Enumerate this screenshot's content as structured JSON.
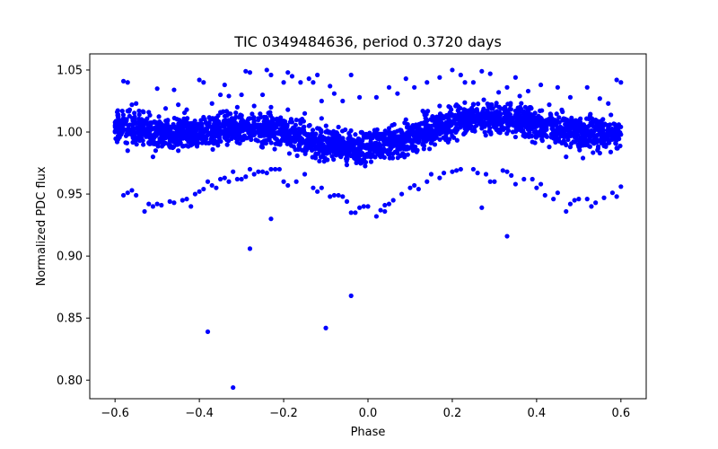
{
  "chart_data": {
    "type": "scatter",
    "title": "TIC 0349484636, period 0.3720 days",
    "xlabel": "Phase",
    "ylabel": "Normalized PDC flux",
    "xlim": [
      -0.66,
      0.66
    ],
    "ylim": [
      0.785,
      1.063
    ],
    "xticks": [
      -0.6,
      -0.4,
      -0.2,
      0.0,
      0.2,
      0.4,
      0.6
    ],
    "xtick_labels": [
      "−0.6",
      "−0.4",
      "−0.2",
      "0.0",
      "0.2",
      "0.4",
      "0.6"
    ],
    "yticks": [
      0.8,
      0.85,
      0.9,
      0.95,
      1.0,
      1.05
    ],
    "ytick_labels": [
      "0.80",
      "0.85",
      "0.90",
      "0.95",
      "1.00",
      "1.05"
    ],
    "grid": false,
    "marker_color": "#0000ff",
    "series": [
      {
        "points": [
          [
            -0.6,
            1.0
          ],
          [
            -0.58,
            1.002
          ],
          [
            -0.56,
            0.998
          ],
          [
            -0.54,
            0.994
          ],
          [
            -0.52,
            0.991
          ],
          [
            -0.5,
            0.99
          ],
          [
            -0.48,
            0.991
          ],
          [
            -0.46,
            0.994
          ],
          [
            -0.44,
            0.997
          ],
          [
            -0.42,
            1.0
          ],
          [
            -0.4,
            1.003
          ],
          [
            -0.38,
            1.005
          ],
          [
            -0.36,
            1.007
          ],
          [
            -0.34,
            1.009
          ],
          [
            -0.32,
            1.01
          ],
          [
            -0.3,
            1.011
          ],
          [
            -0.28,
            1.011
          ],
          [
            -0.26,
            1.011
          ],
          [
            -0.24,
            1.011
          ],
          [
            -0.22,
            1.01
          ],
          [
            -0.2,
            1.009
          ],
          [
            -0.18,
            1.008
          ],
          [
            -0.16,
            1.007
          ],
          [
            -0.14,
            1.005
          ],
          [
            -0.12,
            1.003
          ],
          [
            -0.1,
            1.0
          ],
          [
            -0.08,
            0.996
          ],
          [
            -0.06,
            0.993
          ],
          [
            -0.04,
            0.99
          ],
          [
            -0.02,
            0.988
          ],
          [
            0.0,
            0.987
          ],
          [
            0.02,
            0.988
          ],
          [
            0.04,
            0.991
          ],
          [
            0.06,
            0.995
          ],
          [
            0.08,
            0.999
          ],
          [
            0.1,
            1.003
          ],
          [
            0.12,
            1.006
          ],
          [
            0.14,
            1.009
          ],
          [
            0.16,
            1.011
          ],
          [
            0.18,
            1.012
          ],
          [
            0.2,
            1.013
          ],
          [
            0.22,
            1.013
          ],
          [
            0.24,
            1.013
          ],
          [
            0.26,
            1.012
          ],
          [
            0.28,
            1.011
          ],
          [
            0.3,
            1.01
          ],
          [
            0.32,
            1.008
          ],
          [
            0.34,
            1.006
          ],
          [
            0.36,
            1.004
          ],
          [
            0.38,
            1.002
          ],
          [
            0.4,
            1.0
          ],
          [
            0.42,
            0.998
          ],
          [
            0.44,
            0.995
          ],
          [
            0.46,
            0.991
          ],
          [
            0.48,
            0.988
          ],
          [
            0.5,
            0.988
          ],
          [
            0.52,
            0.99
          ],
          [
            0.54,
            0.992
          ],
          [
            0.56,
            0.994
          ],
          [
            0.58,
            0.996
          ],
          [
            0.6,
            0.998
          ],
          [
            -0.59,
            1.008
          ],
          [
            -0.57,
            0.985
          ],
          [
            -0.53,
            1.002
          ],
          [
            -0.51,
            0.98
          ],
          [
            -0.47,
            0.999
          ],
          [
            -0.45,
            0.985
          ],
          [
            -0.43,
            1.008
          ],
          [
            -0.41,
            0.991
          ],
          [
            -0.39,
            1.012
          ],
          [
            -0.37,
            0.996
          ],
          [
            -0.35,
            1.016
          ],
          [
            -0.33,
            1.0
          ],
          [
            -0.31,
            1.02
          ],
          [
            -0.29,
            1.002
          ],
          [
            -0.27,
            1.021
          ],
          [
            -0.25,
            1.0
          ],
          [
            -0.23,
            1.02
          ],
          [
            -0.21,
            1.0
          ],
          [
            -0.19,
            1.018
          ],
          [
            -0.17,
            0.998
          ],
          [
            -0.15,
            1.015
          ],
          [
            -0.13,
            0.995
          ],
          [
            -0.11,
            1.011
          ],
          [
            -0.09,
            0.99
          ],
          [
            -0.07,
            1.004
          ],
          [
            -0.05,
            0.983
          ],
          [
            -0.03,
            0.998
          ],
          [
            -0.01,
            0.978
          ],
          [
            0.01,
            0.997
          ],
          [
            0.03,
            0.98
          ],
          [
            0.05,
            1.003
          ],
          [
            0.07,
            0.986
          ],
          [
            0.09,
            1.01
          ],
          [
            0.11,
            0.994
          ],
          [
            0.13,
            1.017
          ],
          [
            0.15,
            1.0
          ],
          [
            0.17,
            1.021
          ],
          [
            0.19,
            1.003
          ],
          [
            0.21,
            1.022
          ],
          [
            0.23,
            1.003
          ],
          [
            0.25,
            1.022
          ],
          [
            0.27,
            1.003
          ],
          [
            0.29,
            1.02
          ],
          [
            0.31,
            1.0
          ],
          [
            0.33,
            1.017
          ],
          [
            0.35,
            0.996
          ],
          [
            0.37,
            1.013
          ],
          [
            0.39,
            0.992
          ],
          [
            0.41,
            1.009
          ],
          [
            0.43,
            0.988
          ],
          [
            0.45,
            1.003
          ],
          [
            0.47,
            0.98
          ],
          [
            0.49,
            0.996
          ],
          [
            0.51,
            0.979
          ],
          [
            0.53,
            0.999
          ],
          [
            0.55,
            0.983
          ],
          [
            0.57,
            1.003
          ],
          [
            0.59,
            0.987
          ],
          [
            0.595,
            1.006
          ],
          [
            -0.595,
            0.992
          ],
          [
            -0.58,
            1.041
          ],
          [
            -0.57,
            1.04
          ],
          [
            -0.56,
            1.022
          ],
          [
            -0.55,
            1.023
          ],
          [
            -0.52,
            1.016
          ],
          [
            -0.5,
            1.035
          ],
          [
            -0.48,
            1.019
          ],
          [
            -0.46,
            1.034
          ],
          [
            -0.45,
            1.022
          ],
          [
            -0.43,
            1.018
          ],
          [
            -0.4,
            1.042
          ],
          [
            -0.39,
            1.04
          ],
          [
            -0.37,
            1.023
          ],
          [
            -0.35,
            1.03
          ],
          [
            -0.34,
            1.038
          ],
          [
            -0.33,
            1.029
          ],
          [
            -0.3,
            1.03
          ],
          [
            -0.29,
            1.049
          ],
          [
            -0.28,
            1.048
          ],
          [
            -0.25,
            1.03
          ],
          [
            -0.24,
            1.05
          ],
          [
            -0.23,
            1.046
          ],
          [
            -0.2,
            1.04
          ],
          [
            -0.19,
            1.048
          ],
          [
            -0.18,
            1.045
          ],
          [
            -0.16,
            1.04
          ],
          [
            -0.14,
            1.043
          ],
          [
            -0.13,
            1.04
          ],
          [
            -0.12,
            1.046
          ],
          [
            -0.11,
            1.025
          ],
          [
            -0.09,
            1.037
          ],
          [
            -0.08,
            1.031
          ],
          [
            -0.06,
            1.025
          ],
          [
            -0.04,
            1.046
          ],
          [
            -0.02,
            1.028
          ],
          [
            0.02,
            1.028
          ],
          [
            0.05,
            1.036
          ],
          [
            0.07,
            1.031
          ],
          [
            0.09,
            1.043
          ],
          [
            0.11,
            1.036
          ],
          [
            0.14,
            1.04
          ],
          [
            0.17,
            1.044
          ],
          [
            0.2,
            1.05
          ],
          [
            0.22,
            1.046
          ],
          [
            0.23,
            1.04
          ],
          [
            0.25,
            1.04
          ],
          [
            0.27,
            1.049
          ],
          [
            0.29,
            1.047
          ],
          [
            0.31,
            1.032
          ],
          [
            0.33,
            1.036
          ],
          [
            0.35,
            1.044
          ],
          [
            0.36,
            1.029
          ],
          [
            0.38,
            1.033
          ],
          [
            0.41,
            1.038
          ],
          [
            0.43,
            1.022
          ],
          [
            0.45,
            1.036
          ],
          [
            0.48,
            1.028
          ],
          [
            0.52,
            1.036
          ],
          [
            0.55,
            1.027
          ],
          [
            0.57,
            1.023
          ],
          [
            0.59,
            1.042
          ],
          [
            0.6,
            1.04
          ],
          [
            -0.58,
            0.949
          ],
          [
            -0.57,
            0.951
          ],
          [
            -0.56,
            0.953
          ],
          [
            -0.55,
            0.949
          ],
          [
            -0.53,
            0.936
          ],
          [
            -0.52,
            0.942
          ],
          [
            -0.51,
            0.94
          ],
          [
            -0.5,
            0.942
          ],
          [
            -0.49,
            0.941
          ],
          [
            -0.47,
            0.944
          ],
          [
            -0.46,
            0.943
          ],
          [
            -0.44,
            0.945
          ],
          [
            -0.43,
            0.946
          ],
          [
            -0.42,
            0.94
          ],
          [
            -0.41,
            0.95
          ],
          [
            -0.4,
            0.952
          ],
          [
            -0.39,
            0.954
          ],
          [
            -0.38,
            0.96
          ],
          [
            -0.37,
            0.957
          ],
          [
            -0.36,
            0.955
          ],
          [
            -0.35,
            0.962
          ],
          [
            -0.34,
            0.963
          ],
          [
            -0.33,
            0.96
          ],
          [
            -0.32,
            0.968
          ],
          [
            -0.31,
            0.962
          ],
          [
            -0.3,
            0.962
          ],
          [
            -0.29,
            0.964
          ],
          [
            -0.28,
            0.97
          ],
          [
            -0.27,
            0.966
          ],
          [
            -0.26,
            0.968
          ],
          [
            -0.25,
            0.968
          ],
          [
            -0.24,
            0.967
          ],
          [
            -0.23,
            0.97
          ],
          [
            -0.22,
            0.97
          ],
          [
            -0.21,
            0.97
          ],
          [
            -0.2,
            0.96
          ],
          [
            -0.19,
            0.957
          ],
          [
            -0.17,
            0.96
          ],
          [
            -0.15,
            0.966
          ],
          [
            -0.13,
            0.955
          ],
          [
            -0.12,
            0.952
          ],
          [
            -0.11,
            0.955
          ],
          [
            -0.09,
            0.948
          ],
          [
            -0.08,
            0.949
          ],
          [
            -0.07,
            0.949
          ],
          [
            -0.06,
            0.948
          ],
          [
            -0.05,
            0.944
          ],
          [
            -0.04,
            0.935
          ],
          [
            -0.03,
            0.935
          ],
          [
            -0.02,
            0.939
          ],
          [
            -0.01,
            0.94
          ],
          [
            0.0,
            0.94
          ],
          [
            0.02,
            0.932
          ],
          [
            0.03,
            0.937
          ],
          [
            0.04,
            0.941
          ],
          [
            0.05,
            0.942
          ],
          [
            0.06,
            0.945
          ],
          [
            0.08,
            0.95
          ],
          [
            0.1,
            0.955
          ],
          [
            0.11,
            0.957
          ],
          [
            0.12,
            0.954
          ],
          [
            0.14,
            0.96
          ],
          [
            0.15,
            0.966
          ],
          [
            0.17,
            0.963
          ],
          [
            0.18,
            0.967
          ],
          [
            0.2,
            0.968
          ],
          [
            0.21,
            0.969
          ],
          [
            0.22,
            0.97
          ],
          [
            0.25,
            0.97
          ],
          [
            0.26,
            0.967
          ],
          [
            0.28,
            0.966
          ],
          [
            0.29,
            0.96
          ],
          [
            0.3,
            0.96
          ],
          [
            0.32,
            0.969
          ],
          [
            0.33,
            0.968
          ],
          [
            0.34,
            0.965
          ],
          [
            0.35,
            0.958
          ],
          [
            0.37,
            0.962
          ],
          [
            0.39,
            0.962
          ],
          [
            0.4,
            0.955
          ],
          [
            0.41,
            0.958
          ],
          [
            0.42,
            0.949
          ],
          [
            0.44,
            0.946
          ],
          [
            0.45,
            0.951
          ],
          [
            0.47,
            0.936
          ],
          [
            0.48,
            0.942
          ],
          [
            0.49,
            0.945
          ],
          [
            0.5,
            0.946
          ],
          [
            0.52,
            0.946
          ],
          [
            0.53,
            0.94
          ],
          [
            0.54,
            0.943
          ],
          [
            0.56,
            0.947
          ],
          [
            0.58,
            0.951
          ],
          [
            0.59,
            0.948
          ],
          [
            0.6,
            0.956
          ],
          [
            -0.23,
            0.93
          ],
          [
            -0.28,
            0.906
          ],
          [
            0.04,
            0.936
          ],
          [
            0.27,
            0.939
          ],
          [
            0.33,
            0.916
          ],
          [
            -0.38,
            0.839
          ],
          [
            -0.32,
            0.794
          ],
          [
            -0.1,
            0.842
          ],
          [
            -0.04,
            0.868
          ]
        ]
      }
    ]
  }
}
